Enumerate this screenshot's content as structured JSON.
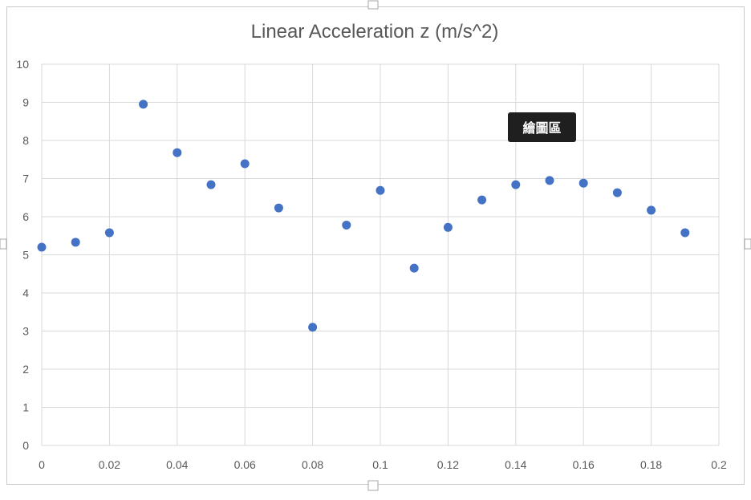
{
  "chart_data": {
    "type": "scatter",
    "title": "Linear Acceleration z (m/s^2)",
    "xlabel": "",
    "ylabel": "",
    "xlim": [
      0,
      0.2
    ],
    "ylim": [
      0,
      10
    ],
    "x_ticks": [
      "0",
      "0.02",
      "0.04",
      "0.06",
      "0.08",
      "0.1",
      "0.12",
      "0.14",
      "0.16",
      "0.18",
      "0.2"
    ],
    "y_ticks": [
      "0",
      "1",
      "2",
      "3",
      "4",
      "5",
      "6",
      "7",
      "8",
      "9",
      "10"
    ],
    "grid": "vertical and horizontal",
    "series": [
      {
        "color": "#4472c4",
        "x": [
          0,
          0.01,
          0.02,
          0.03,
          0.04,
          0.05,
          0.06,
          0.07,
          0.08,
          0.09,
          0.1,
          0.11,
          0.12,
          0.13,
          0.14,
          0.15,
          0.16,
          0.17,
          0.18,
          0.19
        ],
        "y": [
          5.2,
          5.33,
          5.58,
          8.95,
          7.68,
          6.84,
          7.39,
          6.23,
          3.1,
          5.78,
          6.69,
          4.65,
          5.72,
          6.44,
          6.84,
          6.95,
          6.88,
          6.63,
          6.17,
          5.58
        ]
      }
    ]
  },
  "tooltip": {
    "text": "繪圖區"
  }
}
